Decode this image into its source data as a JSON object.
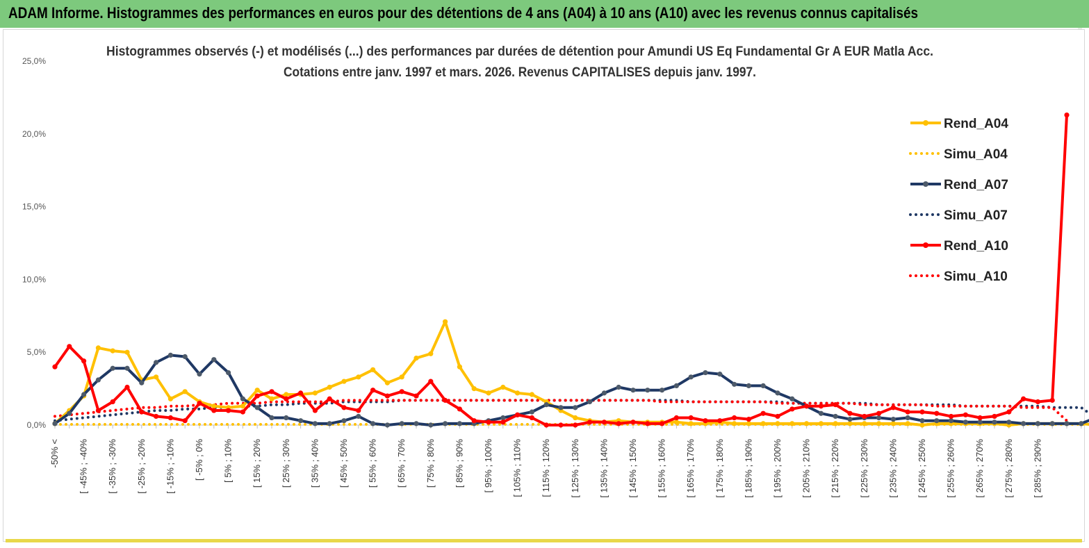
{
  "banner": {
    "title": "ADAM Informe. Histogrammes des performances en euros pour des détentions de 4 ans (A04) à 10 ans (A10) avec les revenus connus capitalisés"
  },
  "colors": {
    "banner": "#7dc97d",
    "a04": "#ffc000",
    "a07": "#1f3864",
    "a07_marker": "#4d5a6a",
    "a10": "#ff0000"
  },
  "chart_data": {
    "type": "line",
    "title": "Histogrammes observés (-) et modélisés (...)  des performances par durées de détention pour Amundi US Eq Fundamental Gr A EUR Matla Acc.",
    "subtitle": "Cotations entre janv. 1997 et mars. 2026. Revenus CAPITALISES depuis janv. 1997.",
    "y_ticks": [
      "0,0%",
      "5,0%",
      "10,0%",
      "15,0%",
      "20,0%",
      "25,0%"
    ],
    "ylim": [
      0,
      25
    ],
    "x_labels": [
      "-50% <",
      "[ -45% ; -40%",
      "[ -35% ; -30%",
      "[ -25% ; -20%",
      "[ -15% ; -10%",
      "[ -5% ; 0%",
      "[ 5% ; 10%",
      "[ 15% ; 20%",
      "[ 25% ; 30%",
      "[ 35% ; 40%",
      "[ 45% ; 50%",
      "[ 55% ; 60%",
      "[ 65% ; 70%",
      "[ 75% ; 80%",
      "[ 85% ; 90%",
      "[ 95% ; 100%",
      "[ 105% ; 110%",
      "[ 115% ; 120%",
      "[ 125% ; 130%",
      "[ 135% ; 140%",
      "[ 145% ; 150%",
      "[ 155% ; 160%",
      "[ 165% ; 170%",
      "[ 175% ; 180%",
      "[ 185% ; 190%",
      "[ 195% ; 200%",
      "[ 205% ; 210%",
      "[ 215% ; 220%",
      "[ 225% ; 230%",
      "[ 235% ; 240%",
      "[ 245% ; 250%",
      "[ 255% ; 260%",
      "[ 265% ; 270%",
      "[ 275% ; 280%",
      "[ 285% ; 290%"
    ],
    "series": [
      {
        "name": "Rend_A04",
        "style": "solid",
        "color": "#ffc000",
        "values": [
          0.1,
          1.0,
          2.0,
          5.3,
          5.1,
          5.0,
          3.1,
          3.3,
          1.8,
          2.3,
          1.6,
          1.3,
          1.2,
          1.3,
          2.4,
          1.8,
          2.1,
          2.1,
          2.2,
          2.6,
          3.0,
          3.3,
          3.8,
          2.9,
          3.3,
          4.6,
          4.9,
          7.1,
          4.0,
          2.5,
          2.2,
          2.6,
          2.2,
          2.1,
          1.6,
          1.0,
          0.5,
          0.3,
          0.2,
          0.3,
          0.2,
          0.2,
          0.2,
          0.2,
          0.1,
          0.1,
          0.2,
          0.1,
          0.1,
          0.1,
          0.1,
          0.1,
          0.1,
          0.1,
          0.1,
          0.1,
          0.1,
          0.1,
          0.1,
          0.1,
          0.0,
          0.1,
          0.1,
          0.1,
          0.1,
          0.1,
          0.0,
          0.1,
          0.1,
          0.1,
          0.1,
          0.1,
          0.0
        ]
      },
      {
        "name": "Simu_A04",
        "style": "dotted",
        "color": "#ffc000",
        "values": [
          0.05,
          0.05,
          0.05,
          0.05,
          0.05,
          0.05,
          0.05,
          0.05,
          0.05,
          0.05,
          0.05,
          0.05,
          0.05,
          0.05,
          0.05,
          0.05,
          0.05,
          0.05,
          0.05,
          0.05,
          0.05,
          0.05,
          0.05,
          0.05,
          0.05,
          0.05,
          0.05,
          0.05,
          0.05,
          0.05,
          0.05,
          0.05,
          0.05,
          0.05,
          0.05,
          0.05,
          0.05,
          0.05,
          0.05,
          0.05,
          0.05,
          0.05,
          0.05,
          0.05,
          0.05,
          0.05,
          0.05,
          0.05,
          0.05,
          0.05,
          0.05,
          0.05,
          0.05,
          0.05,
          0.05,
          0.05,
          0.05,
          0.05,
          0.05,
          0.05,
          0.05,
          0.05,
          0.05,
          0.05,
          0.05,
          0.05,
          0.05,
          0.05,
          0.05,
          0.05,
          0.05,
          0.05,
          0.05
        ]
      },
      {
        "name": "Rend_A07",
        "style": "solid",
        "color": "#1f3864",
        "values": [
          0.1,
          0.8,
          2.1,
          3.1,
          3.9,
          3.9,
          2.9,
          4.3,
          4.8,
          4.7,
          3.5,
          4.5,
          3.6,
          1.8,
          1.2,
          0.5,
          0.5,
          0.3,
          0.1,
          0.1,
          0.3,
          0.6,
          0.1,
          0.0,
          0.1,
          0.1,
          0.0,
          0.1,
          0.1,
          0.1,
          0.3,
          0.5,
          0.7,
          0.9,
          1.4,
          1.2,
          1.2,
          1.6,
          2.2,
          2.6,
          2.4,
          2.4,
          2.4,
          2.7,
          3.3,
          3.6,
          3.5,
          2.8,
          2.7,
          2.7,
          2.2,
          1.8,
          1.3,
          0.8,
          0.6,
          0.4,
          0.5,
          0.5,
          0.4,
          0.5,
          0.3,
          0.3,
          0.3,
          0.2,
          0.2,
          0.2,
          0.2,
          0.1,
          0.1,
          0.1,
          0.1,
          0.1,
          0.5
        ]
      },
      {
        "name": "Simu_A07",
        "style": "dotted",
        "color": "#1f3864",
        "values": [
          0.3,
          0.4,
          0.5,
          0.6,
          0.7,
          0.8,
          0.9,
          1.0,
          1.0,
          1.1,
          1.1,
          1.2,
          1.2,
          1.3,
          1.3,
          1.4,
          1.4,
          1.5,
          1.5,
          1.5,
          1.6,
          1.6,
          1.6,
          1.6,
          1.7,
          1.7,
          1.7,
          1.7,
          1.7,
          1.7,
          1.7,
          1.7,
          1.7,
          1.7,
          1.7,
          1.7,
          1.7,
          1.7,
          1.7,
          1.7,
          1.7,
          1.7,
          1.7,
          1.7,
          1.6,
          1.6,
          1.6,
          1.6,
          1.6,
          1.6,
          1.6,
          1.5,
          1.5,
          1.5,
          1.5,
          1.5,
          1.5,
          1.4,
          1.4,
          1.4,
          1.4,
          1.4,
          1.4,
          1.3,
          1.3,
          1.3,
          1.3,
          1.3,
          1.3,
          1.2,
          1.2,
          1.2,
          0.5
        ]
      },
      {
        "name": "Rend_A10",
        "style": "solid",
        "color": "#ff0000",
        "values": [
          4.0,
          5.4,
          4.4,
          1.0,
          1.6,
          2.6,
          0.9,
          0.6,
          0.5,
          0.3,
          1.5,
          1.0,
          1.0,
          0.9,
          2.0,
          2.3,
          1.8,
          2.2,
          1.0,
          1.8,
          1.2,
          1.0,
          2.4,
          2.0,
          2.3,
          2.0,
          3.0,
          1.7,
          1.1,
          0.3,
          0.2,
          0.2,
          0.7,
          0.5,
          0.0,
          0.0,
          0.0,
          0.2,
          0.2,
          0.1,
          0.2,
          0.1,
          0.1,
          0.5,
          0.5,
          0.3,
          0.3,
          0.5,
          0.4,
          0.8,
          0.6,
          1.1,
          1.3,
          1.3,
          1.4,
          0.8,
          0.6,
          0.8,
          1.2,
          0.9,
          0.9,
          0.8,
          0.6,
          0.7,
          0.5,
          0.6,
          0.9,
          1.8,
          1.6,
          1.7,
          21.3
        ]
      },
      {
        "name": "Simu_A10",
        "style": "dotted",
        "color": "#ff0000",
        "values": [
          0.6,
          0.7,
          0.8,
          0.9,
          1.0,
          1.1,
          1.2,
          1.2,
          1.3,
          1.3,
          1.4,
          1.4,
          1.5,
          1.5,
          1.5,
          1.6,
          1.6,
          1.6,
          1.6,
          1.6,
          1.7,
          1.7,
          1.7,
          1.7,
          1.7,
          1.7,
          1.7,
          1.7,
          1.7,
          1.7,
          1.7,
          1.7,
          1.7,
          1.7,
          1.7,
          1.7,
          1.7,
          1.7,
          1.7,
          1.7,
          1.7,
          1.7,
          1.6,
          1.6,
          1.6,
          1.6,
          1.6,
          1.6,
          1.6,
          1.6,
          1.5,
          1.5,
          1.5,
          1.5,
          1.5,
          1.5,
          1.4,
          1.4,
          1.4,
          1.4,
          1.4,
          1.3,
          1.3,
          1.3,
          1.3,
          1.3,
          1.3,
          1.2,
          1.2,
          1.2,
          0.3
        ]
      }
    ],
    "legend": [
      "Rend_A04",
      "Simu_A04",
      "Rend_A07",
      "Simu_A07",
      "Rend_A10",
      "Simu_A10"
    ],
    "legend_position": "top-right",
    "grid": false
  }
}
